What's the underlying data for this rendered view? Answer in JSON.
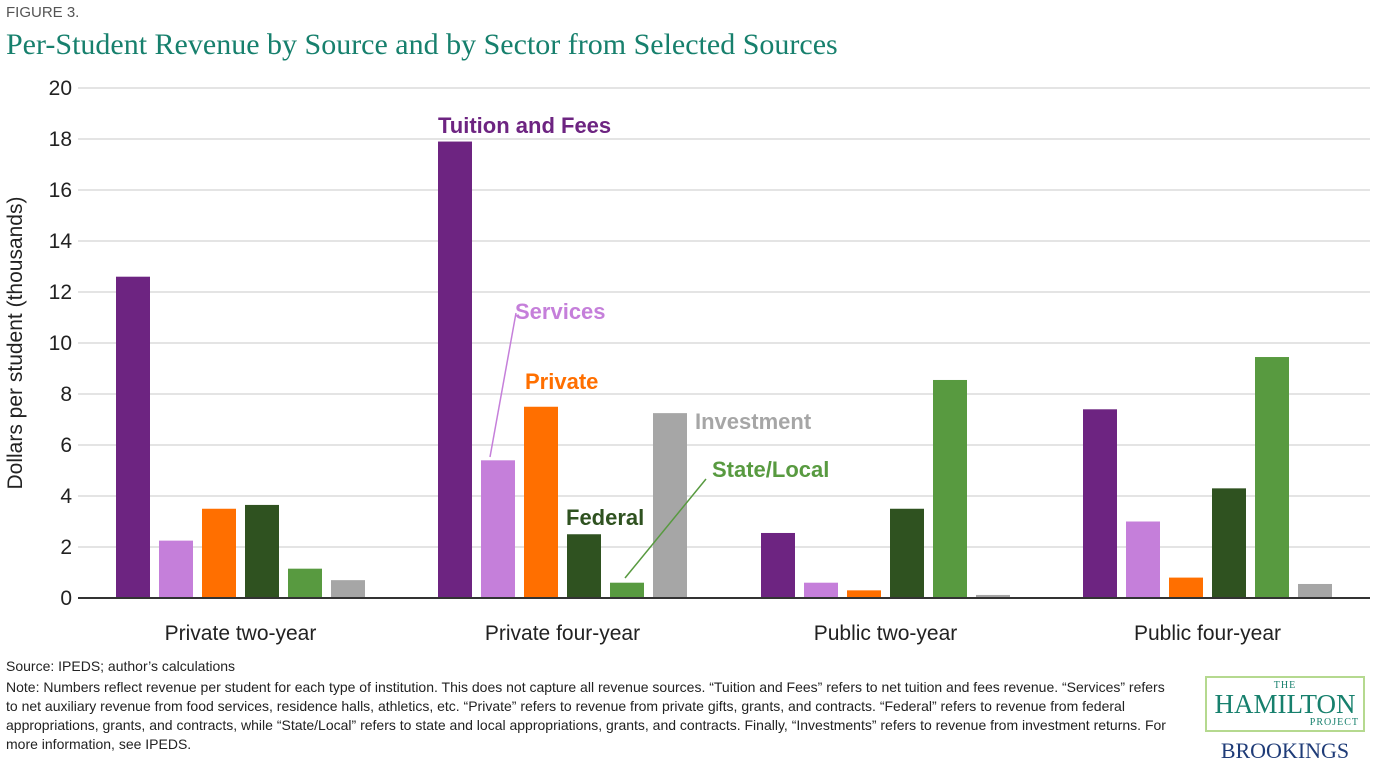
{
  "figure_label": "FIGURE 3.",
  "source": "Source: IPEDS; author’s calculations",
  "note": "Note: Numbers reflect revenue per student for each type of institution. This does not capture all revenue sources. “Tuition and Fees” refers to net tuition and fees revenue. “Services” refers to net auxiliary revenue from food services, residence halls, athletics, etc. “Private” refers to revenue from private gifts, grants, and contracts. “Federal” refers to revenue from federal appropriations, grants, and contracts, while “State/Local” refers to state and local appropriations, grants, and contracts. Finally, “Investments” refers to revenue from investment returns. For more information, see IPEDS.",
  "logo": {
    "the": "THE",
    "hamilton": "HAMILTON",
    "project": "PROJECT",
    "brookings": "BROOKINGS"
  },
  "chart_data": {
    "type": "bar",
    "title": "Per-Student Revenue by Source and by Sector from Selected Sources",
    "xlabel": "",
    "ylabel": "Dollars per student  (thousands)",
    "ylim": [
      0,
      20
    ],
    "yticks": [
      0,
      2,
      4,
      6,
      8,
      10,
      12,
      14,
      16,
      18,
      20
    ],
    "grid": true,
    "legend": "inline annotations",
    "categories": [
      "Private two-year",
      "Private four-year",
      "Public two-year",
      "Public four-year"
    ],
    "series": [
      {
        "name": "Tuition and Fees",
        "color": "#6d2481",
        "values": [
          12.6,
          17.9,
          2.55,
          7.4
        ]
      },
      {
        "name": "Services",
        "color": "#c57fda",
        "values": [
          2.25,
          5.4,
          0.6,
          3.0
        ]
      },
      {
        "name": "Private",
        "color": "#ff6f00",
        "values": [
          3.5,
          7.5,
          0.3,
          0.8
        ]
      },
      {
        "name": "Federal",
        "color": "#2f5220",
        "values": [
          3.65,
          2.5,
          3.5,
          4.3
        ]
      },
      {
        "name": "State/Local",
        "color": "#589a40",
        "values": [
          1.15,
          0.6,
          8.55,
          9.45
        ]
      },
      {
        "name": "Investment",
        "color": "#a6a6a6",
        "values": [
          0.7,
          7.25,
          0.12,
          0.55
        ]
      }
    ]
  }
}
